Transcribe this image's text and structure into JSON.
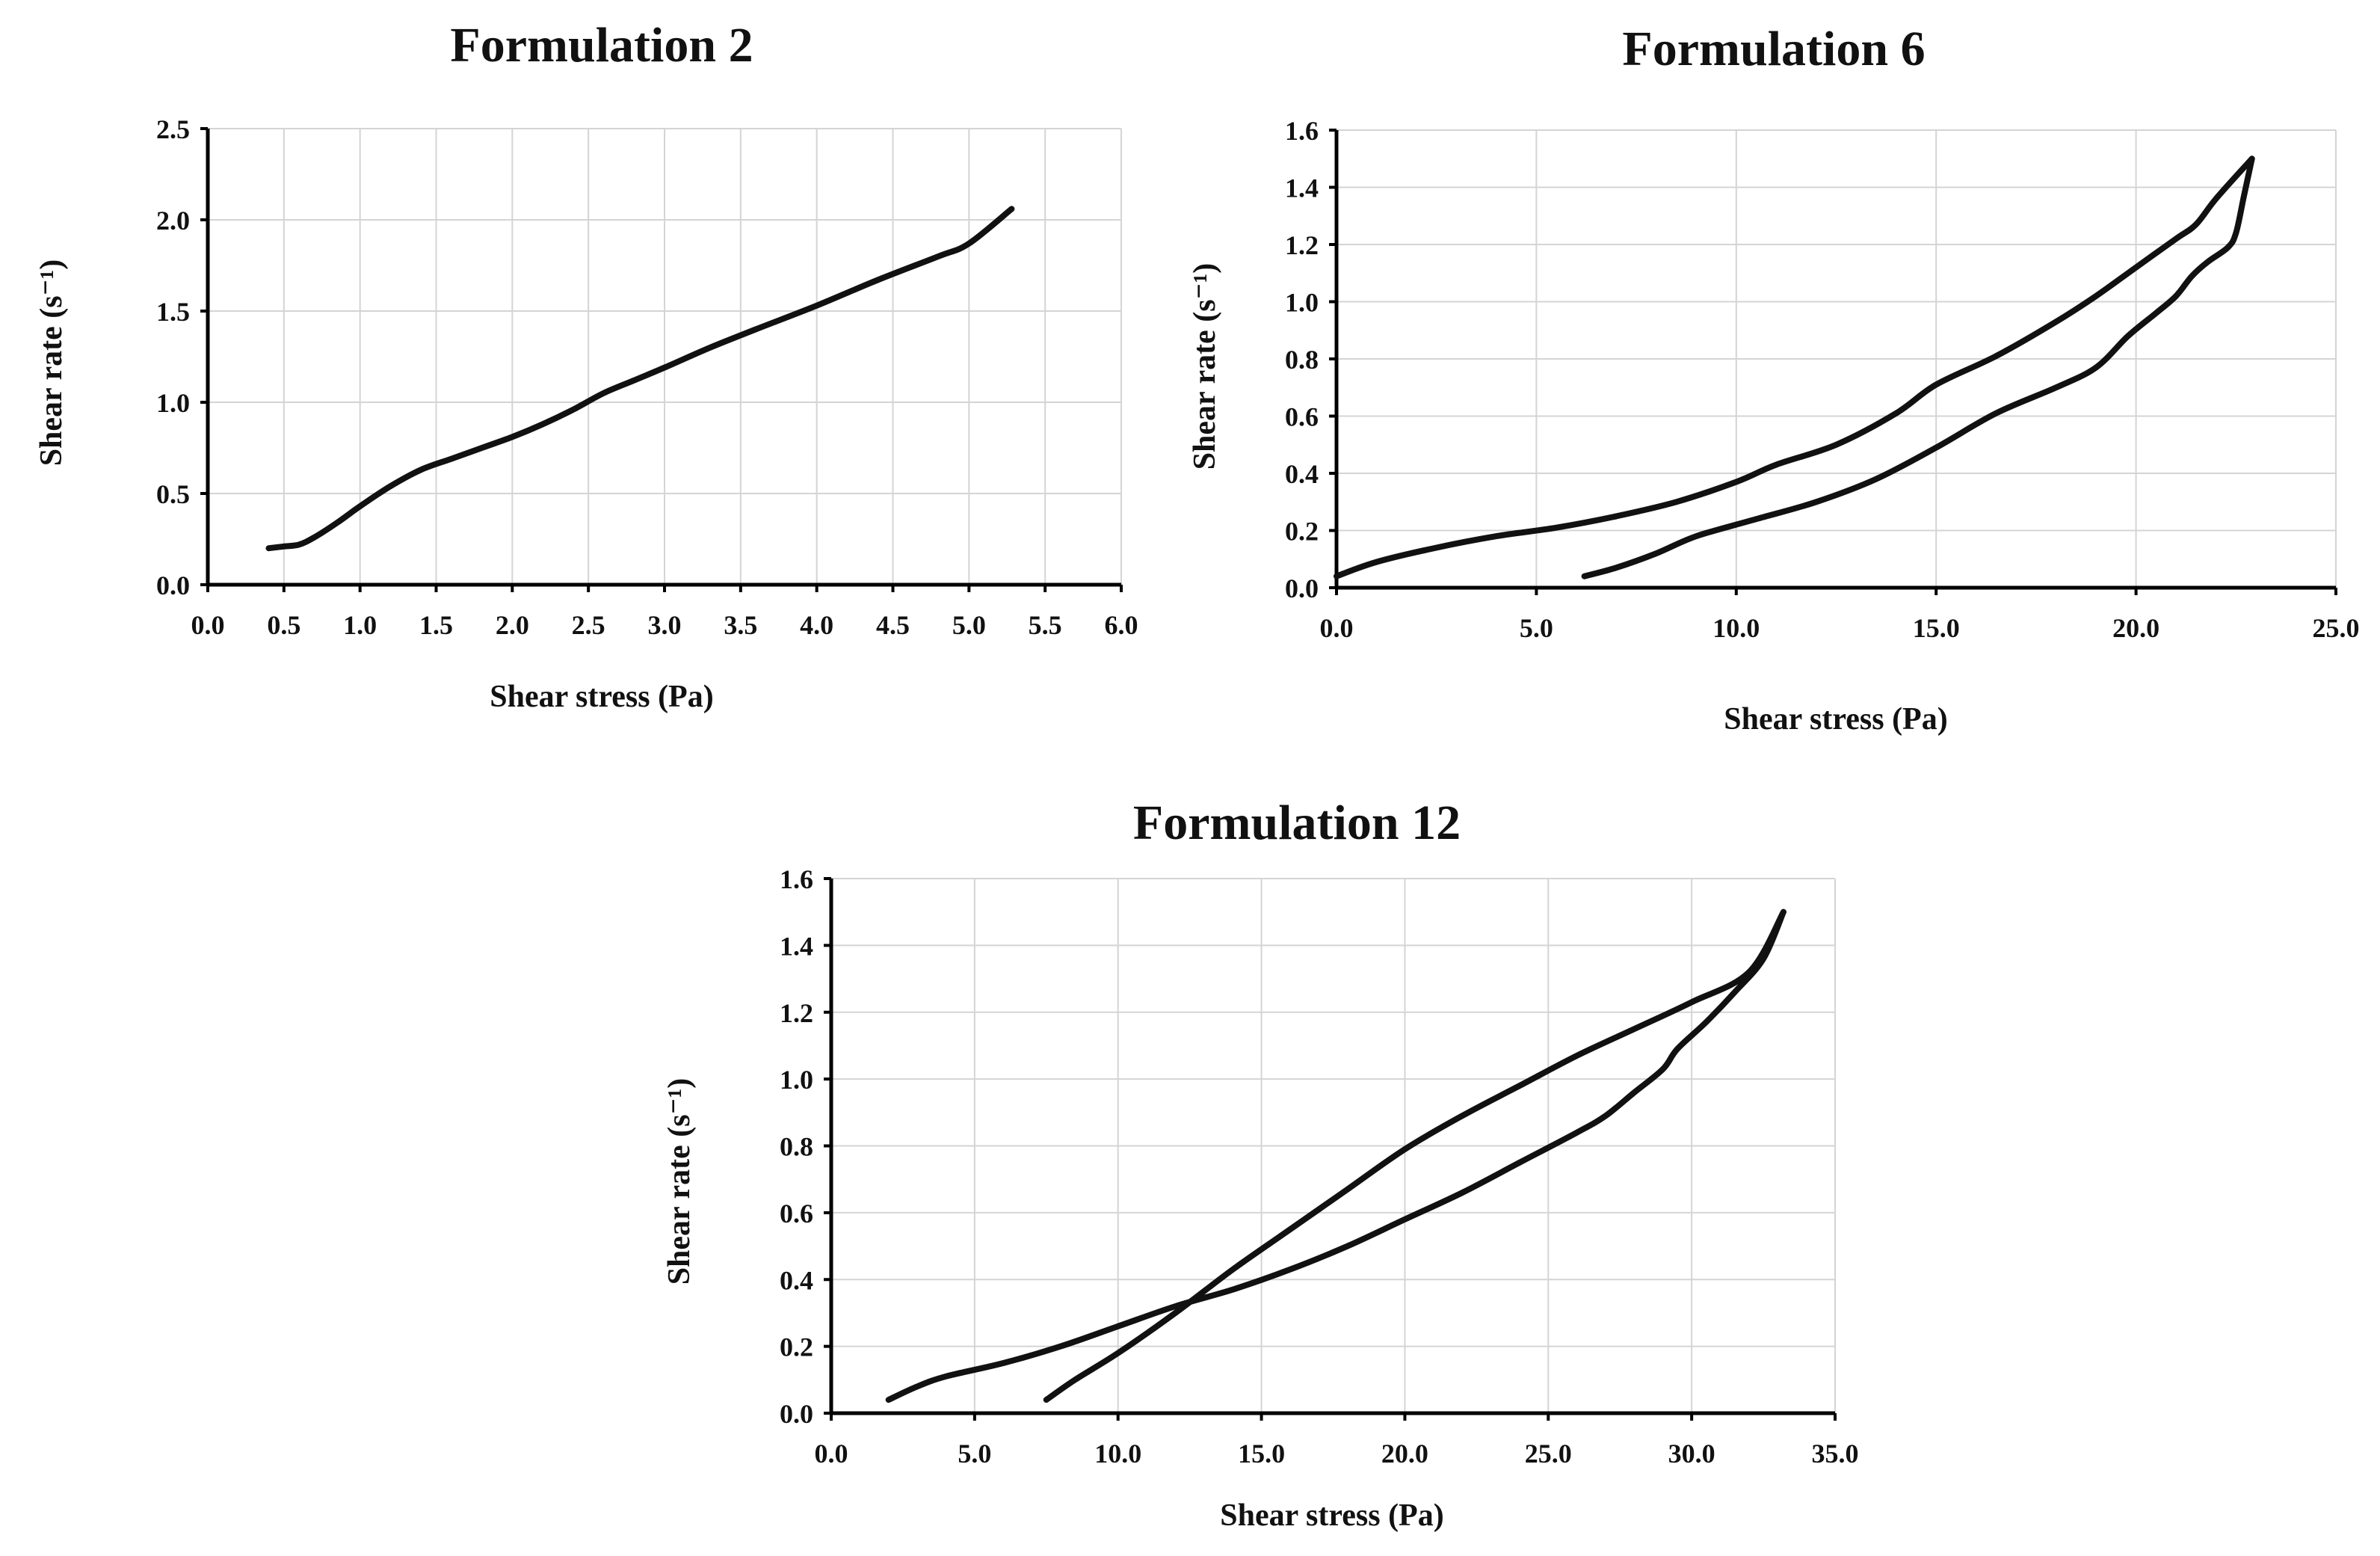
{
  "chart_data": [
    {
      "type": "line",
      "title": "Formulation 2",
      "xlabel": "Shear stress (Pa)",
      "ylabel": "Shear rate (s⁻¹)",
      "xlim": [
        0,
        6
      ],
      "ylim": [
        0,
        2.5
      ],
      "x_ticks": [
        "0.0",
        "0.5",
        "1.0",
        "1.5",
        "2.0",
        "2.5",
        "3.0",
        "3.5",
        "4.0",
        "4.5",
        "5.0",
        "5.5",
        "6.0"
      ],
      "y_ticks": [
        "0.0",
        "0.5",
        "1.0",
        "1.5",
        "2.0",
        "2.5"
      ],
      "grid": true,
      "series": [
        {
          "x": [
            0.4,
            0.5,
            0.6,
            0.7,
            0.85,
            1.0,
            1.2,
            1.4,
            1.6,
            1.8,
            2.0,
            2.2,
            2.4,
            2.6,
            2.8,
            3.0,
            3.3,
            3.6,
            4.0,
            4.4,
            4.8,
            5.0,
            5.28
          ],
          "y": [
            0.2,
            0.21,
            0.22,
            0.26,
            0.34,
            0.43,
            0.54,
            0.63,
            0.69,
            0.75,
            0.81,
            0.88,
            0.96,
            1.05,
            1.12,
            1.19,
            1.3,
            1.4,
            1.53,
            1.67,
            1.8,
            1.87,
            2.06
          ]
        }
      ]
    },
    {
      "type": "line",
      "title": "Formulation 6",
      "xlabel": "Shear stress (Pa)",
      "ylabel": "Shear rate (s⁻¹)",
      "xlim": [
        0,
        25
      ],
      "ylim": [
        0,
        1.6
      ],
      "x_ticks": [
        "0.0",
        "5.0",
        "10.0",
        "15.0",
        "20.0",
        "25.0"
      ],
      "y_ticks": [
        "0.0",
        "0.2",
        "0.4",
        "0.6",
        "0.8",
        "1.0",
        "1.2",
        "1.4",
        "1.6"
      ],
      "grid": true,
      "series": [
        {
          "x": [
            0.0,
            1.0,
            2.5,
            4.0,
            5.5,
            7.0,
            8.5,
            10.0,
            11.0,
            12.5,
            14.0,
            15.0,
            16.5,
            18.0,
            19.0,
            20.0,
            21.0,
            21.5,
            22.0,
            22.9
          ],
          "y": [
            0.04,
            0.09,
            0.14,
            0.18,
            0.21,
            0.25,
            0.3,
            0.37,
            0.43,
            0.5,
            0.61,
            0.71,
            0.81,
            0.93,
            1.02,
            1.12,
            1.22,
            1.27,
            1.36,
            1.5
          ]
        },
        {
          "x": [
            6.2,
            7.0,
            8.0,
            9.0,
            10.5,
            12.0,
            13.5,
            15.0,
            16.5,
            18.0,
            19.0,
            19.8,
            20.5,
            21.0,
            21.4,
            21.8,
            22.3,
            22.5,
            22.7,
            22.9
          ],
          "y": [
            0.04,
            0.07,
            0.12,
            0.18,
            0.24,
            0.3,
            0.38,
            0.49,
            0.61,
            0.7,
            0.77,
            0.88,
            0.96,
            1.02,
            1.09,
            1.14,
            1.19,
            1.24,
            1.37,
            1.5
          ]
        }
      ]
    },
    {
      "type": "line",
      "title": "Formulation 12",
      "xlabel": "Shear stress (Pa)",
      "ylabel": "Shear rate (s⁻¹)",
      "xlim": [
        0,
        35
      ],
      "ylim": [
        0,
        1.6
      ],
      "x_ticks": [
        "0.0",
        "5.0",
        "10.0",
        "15.0",
        "20.0",
        "25.0",
        "30.0",
        "35.0"
      ],
      "y_ticks": [
        "0.0",
        "0.2",
        "0.4",
        "0.6",
        "0.8",
        "1.0",
        "1.2",
        "1.4",
        "1.6"
      ],
      "grid": true,
      "series": [
        {
          "x": [
            2.0,
            3.0,
            4.0,
            6.0,
            8.0,
            10.0,
            12.0,
            14.0,
            16.0,
            18.0,
            20.0,
            22.0,
            24.0,
            26.0,
            27.0,
            28.0,
            29.0,
            29.5,
            30.5,
            31.5,
            32.5,
            33.2
          ],
          "y": [
            0.04,
            0.08,
            0.11,
            0.15,
            0.2,
            0.26,
            0.32,
            0.37,
            0.43,
            0.5,
            0.58,
            0.66,
            0.75,
            0.84,
            0.89,
            0.96,
            1.03,
            1.09,
            1.17,
            1.26,
            1.36,
            1.5
          ]
        },
        {
          "x": [
            7.5,
            8.5,
            10.0,
            12.0,
            14.0,
            16.0,
            18.0,
            20.0,
            22.0,
            24.0,
            26.0,
            28.0,
            30.0,
            32.0,
            33.2
          ],
          "y": [
            0.04,
            0.1,
            0.18,
            0.3,
            0.43,
            0.55,
            0.67,
            0.79,
            0.89,
            0.98,
            1.07,
            1.15,
            1.23,
            1.32,
            1.5
          ]
        }
      ]
    }
  ]
}
